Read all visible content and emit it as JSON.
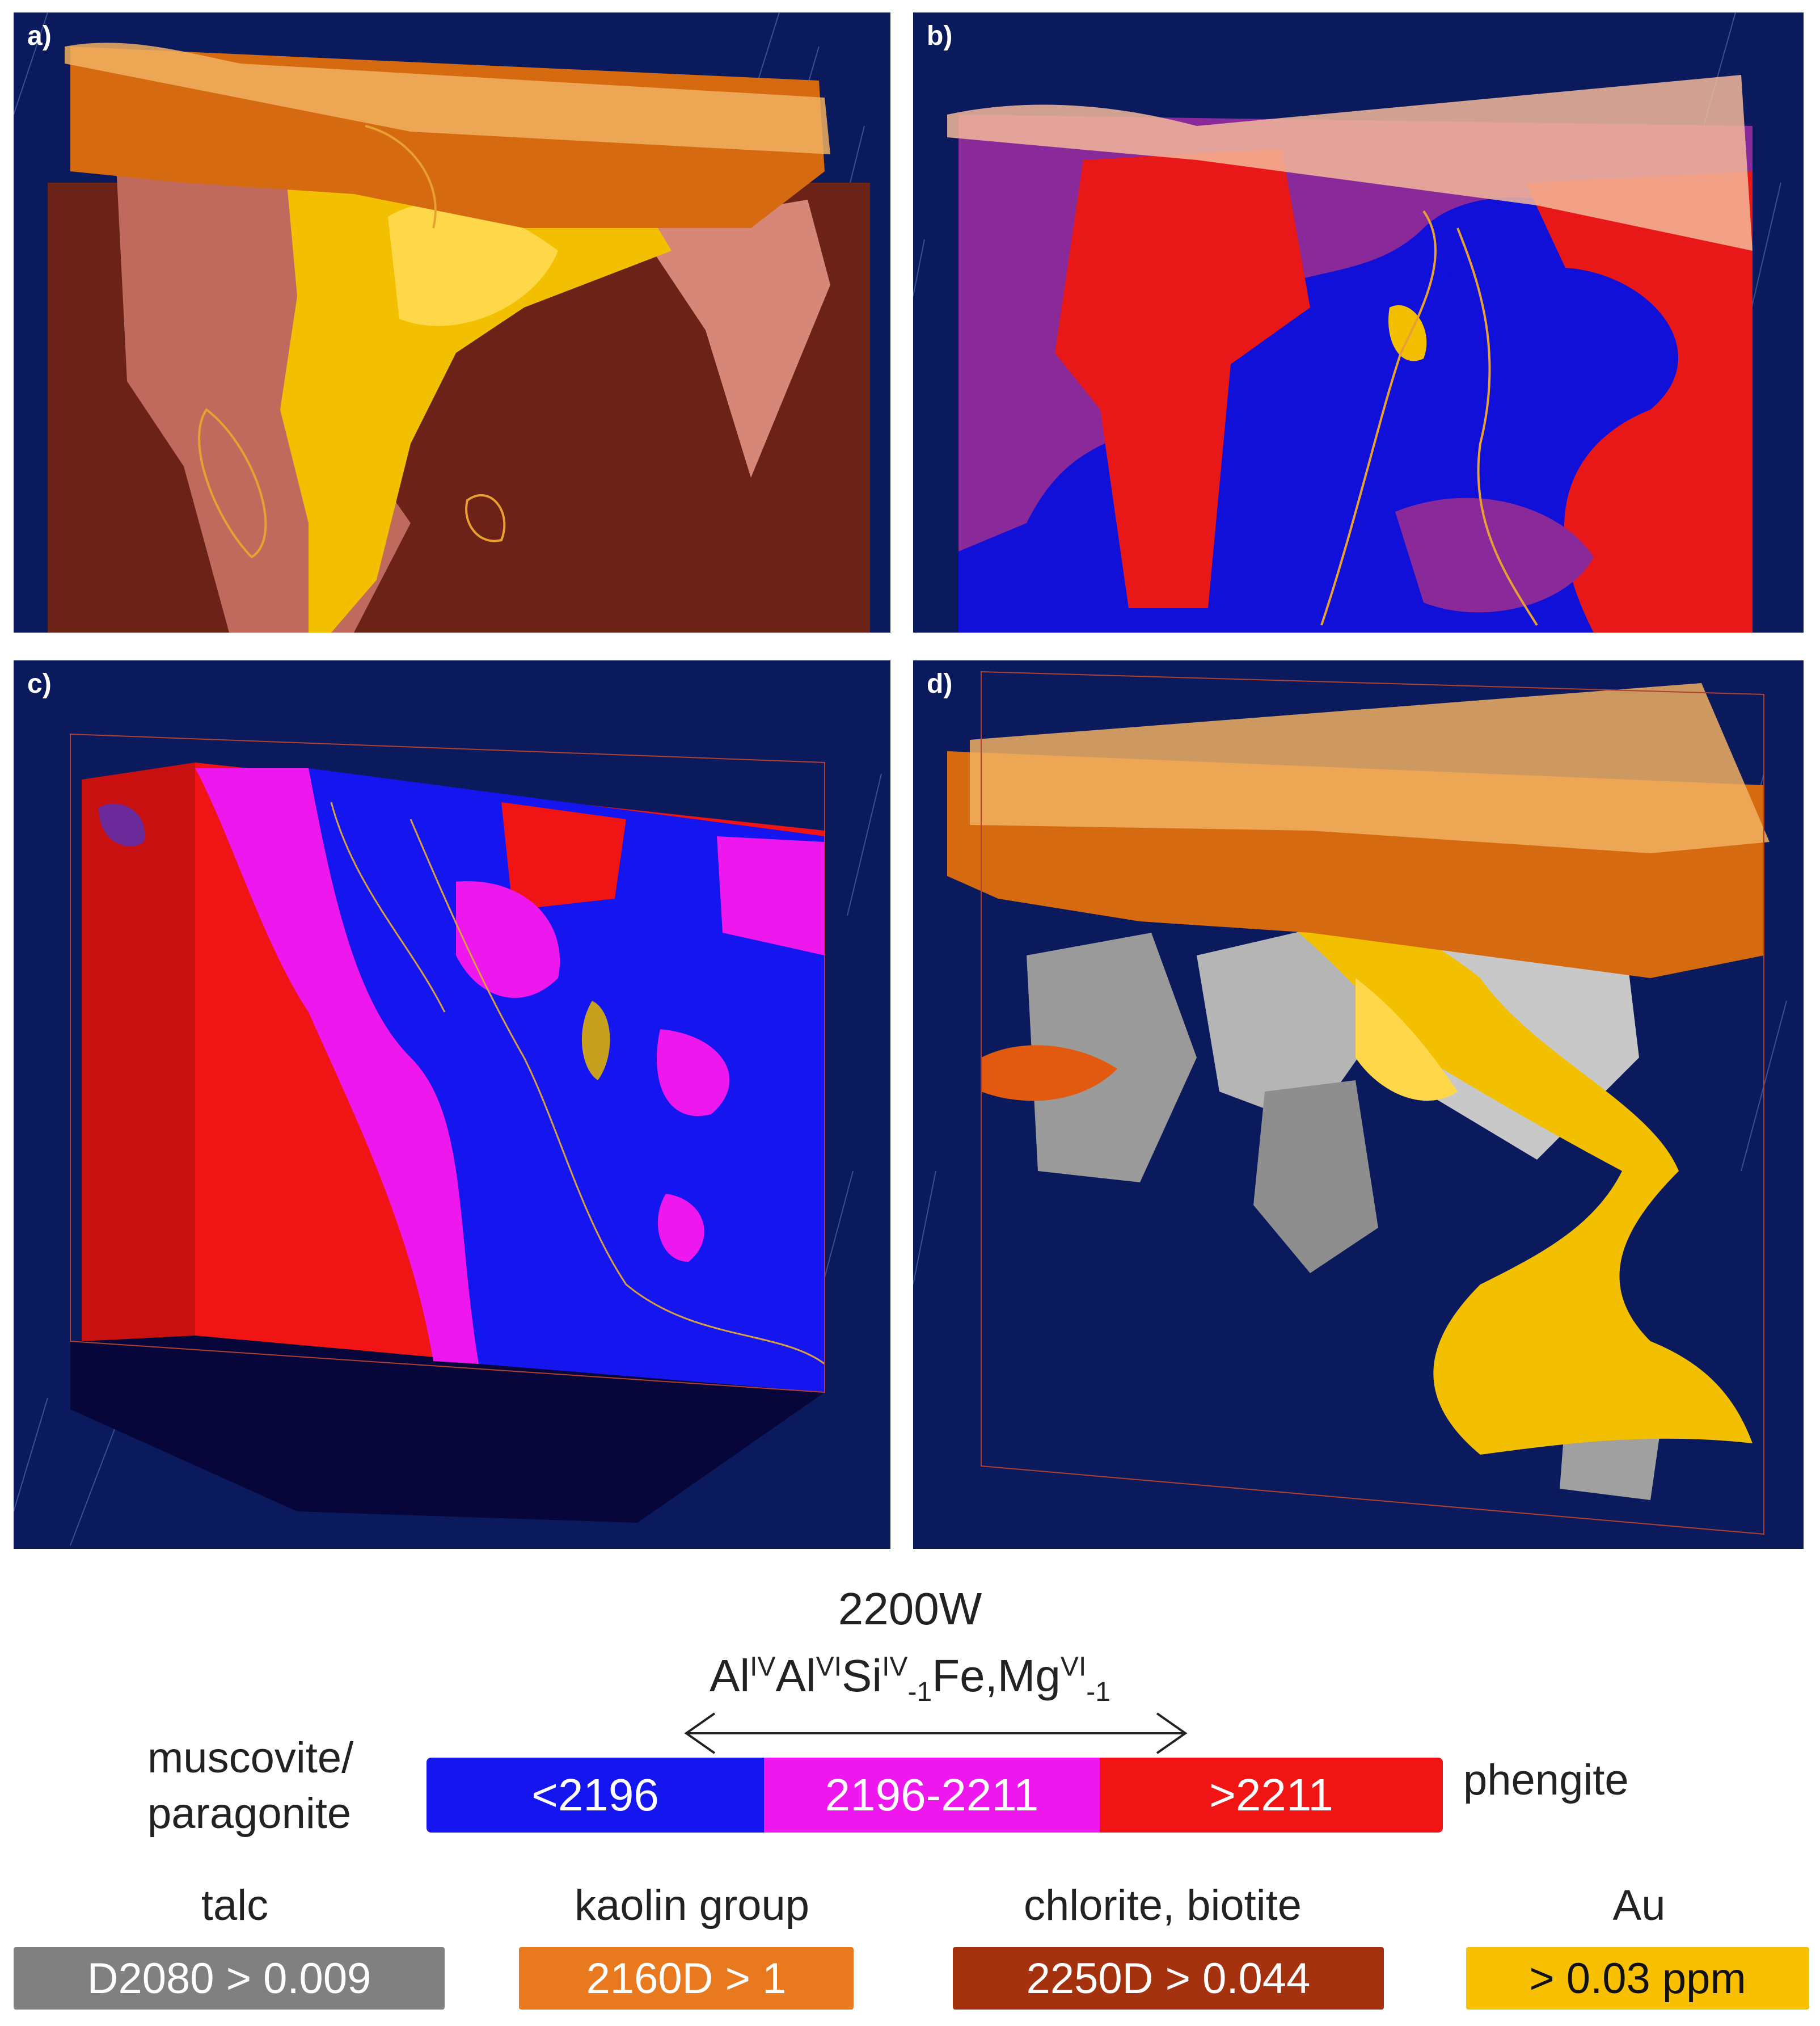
{
  "panels": [
    {
      "id": "a",
      "label": "a)"
    },
    {
      "id": "b",
      "label": "b)"
    },
    {
      "id": "c",
      "label": "c)"
    },
    {
      "id": "d",
      "label": "d)"
    }
  ],
  "scale": {
    "title": "2200W",
    "formula": {
      "p1": "Al",
      "s1": "IV",
      "p2": "Al",
      "s2": "VI",
      "p3": "Si",
      "s3": "IV",
      "b3": "-1",
      "p4": "Fe,Mg",
      "s4": "VI",
      "b4": "-1"
    },
    "left_end": [
      "muscovite/",
      "paragonite"
    ],
    "right_end": "phengite",
    "segments": [
      {
        "label": "<2196",
        "color": "#1515f0"
      },
      {
        "label": "2196-2211",
        "color": "#ee18ee"
      },
      {
        "label": ">2211",
        "color": "#f01414"
      }
    ]
  },
  "minerals": [
    {
      "name": "talc",
      "threshold": "D2080 > 0.009",
      "color": "#808080"
    },
    {
      "name": "kaolin group",
      "threshold": "2160D > 1",
      "color": "#e8791f"
    },
    {
      "name": "chlorite, biotite",
      "threshold": "2250D > 0.044",
      "color": "#a5320e"
    },
    {
      "name": "Au",
      "threshold": "> 0.03 ppm",
      "color": "#f8c000"
    }
  ]
}
